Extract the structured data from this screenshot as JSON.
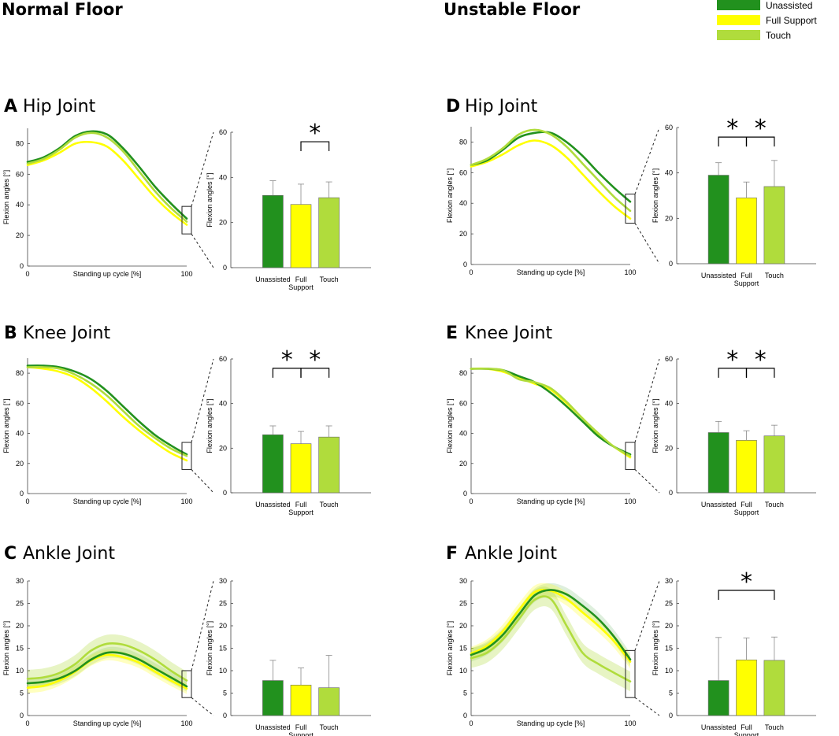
{
  "columns": {
    "left": "Normal Floor",
    "right": "Unstable Floor"
  },
  "legend": [
    {
      "label": "Unassisted",
      "color": "#22911e"
    },
    {
      "label": "Full Support",
      "color": "#ffff00"
    },
    {
      "label": "Touch",
      "color": "#b0dc3c"
    }
  ],
  "common": {
    "xlabel": "Standing up cycle [%]",
    "ylabel": "Flexion angles [°]",
    "bar_ylabel": "Flexion angles [°]",
    "categories": [
      "Unassisted",
      "Full\nSupport",
      "Touch"
    ],
    "x_ticks": [
      "0",
      "100"
    ]
  },
  "chart_data": [
    {
      "letter": "A",
      "title": "Hip Joint",
      "type": "line",
      "line": {
        "ylim": [
          0,
          90
        ],
        "yticks": [
          0,
          20,
          40,
          60,
          80
        ],
        "x_end": 100,
        "series": [
          {
            "name": "Unassisted",
            "x": [
              0,
              10,
              20,
              30,
              40,
              50,
              60,
              70,
              80,
              90,
              100
            ],
            "y": [
              68,
              71,
              77,
              85,
              88,
              86,
              77,
              65,
              52,
              41,
              31
            ]
          },
          {
            "name": "Full Support",
            "x": [
              0,
              10,
              20,
              30,
              40,
              50,
              60,
              70,
              80,
              90,
              100
            ],
            "y": [
              66,
              69,
              74,
              80,
              81,
              78,
              69,
              57,
              45,
              35,
              27
            ]
          },
          {
            "name": "Touch",
            "x": [
              0,
              10,
              20,
              30,
              40,
              50,
              60,
              70,
              80,
              90,
              100
            ],
            "y": [
              67,
              70,
              76,
              84,
              87,
              84,
              75,
              62,
              49,
              38,
              29
            ]
          }
        ],
        "zoom_box": [
          21,
          39
        ]
      },
      "bar": {
        "ylim": [
          0,
          60
        ],
        "yticks": [
          0,
          20,
          40,
          60
        ],
        "values": [
          32,
          28,
          31
        ],
        "errors": [
          6.5,
          9,
          7
        ],
        "sig": [
          {
            "from": 1,
            "to": 2,
            "label": "*"
          }
        ]
      }
    },
    {
      "letter": "B",
      "title": "Knee Joint",
      "type": "line",
      "line": {
        "ylim": [
          0,
          90
        ],
        "yticks": [
          0,
          20,
          40,
          60,
          80
        ],
        "x_end": 100,
        "series": [
          {
            "name": "Unassisted",
            "x": [
              0,
              10,
              20,
              30,
              40,
              50,
              60,
              70,
              80,
              90,
              100
            ],
            "y": [
              85,
              85,
              84,
              81,
              76,
              68,
              58,
              48,
              39,
              32,
              26
            ]
          },
          {
            "name": "Full Support",
            "x": [
              0,
              10,
              20,
              30,
              40,
              50,
              60,
              70,
              80,
              90,
              100
            ],
            "y": [
              84,
              83,
              81,
              77,
              70,
              61,
              51,
              42,
              34,
              27,
              22
            ]
          },
          {
            "name": "Touch",
            "x": [
              0,
              10,
              20,
              30,
              40,
              50,
              60,
              70,
              80,
              90,
              100
            ],
            "y": [
              84,
              84,
              83,
              79,
              73,
              65,
              55,
              45,
              37,
              30,
              25
            ]
          }
        ],
        "zoom_box": [
          16,
          34
        ]
      },
      "bar": {
        "ylim": [
          0,
          60
        ],
        "yticks": [
          0,
          20,
          40,
          60
        ],
        "values": [
          26,
          22,
          25
        ],
        "errors": [
          4,
          5.5,
          5
        ],
        "sig": [
          {
            "from": 0,
            "to": 1,
            "label": "*"
          },
          {
            "from": 1,
            "to": 2,
            "label": "*"
          }
        ]
      }
    },
    {
      "letter": "C",
      "title": "Ankle Joint",
      "type": "line",
      "line": {
        "ylim": [
          0,
          30
        ],
        "yticks": [
          0,
          5,
          10,
          15,
          20,
          25,
          30
        ],
        "x_end": 100,
        "series": [
          {
            "name": "Unassisted",
            "x": [
              0,
              10,
              20,
              30,
              40,
              50,
              60,
              70,
              80,
              90,
              100
            ],
            "y": [
              7.2,
              7.5,
              8.3,
              10,
              12.5,
              14,
              13.8,
              12.5,
              10.5,
              8.5,
              6.5
            ]
          },
          {
            "name": "Full Support",
            "x": [
              0,
              10,
              20,
              30,
              40,
              50,
              60,
              70,
              80,
              90,
              100
            ],
            "y": [
              6.2,
              6.6,
              7.8,
              9.8,
              12.3,
              13.5,
              13,
              11.8,
              9.8,
              7.8,
              6
            ]
          },
          {
            "name": "Touch",
            "x": [
              0,
              10,
              20,
              30,
              40,
              50,
              60,
              70,
              80,
              90,
              100
            ],
            "y": [
              8.2,
              8.5,
              9.5,
              11.5,
              14.5,
              16,
              15.8,
              14.5,
              12.5,
              10,
              7.8
            ]
          }
        ],
        "bands": [
          1.2,
          1.2,
          2.0
        ],
        "zoom_box": [
          4,
          10
        ]
      },
      "bar": {
        "ylim": [
          0,
          30
        ],
        "yticks": [
          0,
          5,
          10,
          15,
          20,
          25,
          30
        ],
        "values": [
          7.8,
          6.8,
          6.2
        ],
        "errors": [
          4.5,
          3.8,
          7.2
        ],
        "sig": []
      }
    },
    {
      "letter": "D",
      "title": "Hip Joint",
      "type": "line",
      "line": {
        "ylim": [
          0,
          90
        ],
        "yticks": [
          0,
          20,
          40,
          60,
          80
        ],
        "x_end": 100,
        "series": [
          {
            "name": "Unassisted",
            "x": [
              0,
              10,
              20,
              30,
              40,
              50,
              60,
              70,
              80,
              90,
              100
            ],
            "y": [
              65,
              68,
              75,
              83,
              86,
              86,
              80,
              71,
              60,
              50,
              41
            ]
          },
          {
            "name": "Full Support",
            "x": [
              0,
              10,
              20,
              30,
              40,
              50,
              60,
              70,
              80,
              90,
              100
            ],
            "y": [
              64,
              67,
              72,
              78,
              81,
              78,
              70,
              59,
              48,
              38,
              30
            ]
          },
          {
            "name": "Touch",
            "x": [
              0,
              10,
              20,
              30,
              40,
              50,
              60,
              70,
              80,
              90,
              100
            ],
            "y": [
              65,
              69,
              76,
              85,
              88,
              85,
              77,
              66,
              55,
              44,
              35
            ]
          }
        ],
        "zoom_box": [
          27,
          46
        ]
      },
      "bar": {
        "ylim": [
          0,
          60
        ],
        "yticks": [
          0,
          20,
          40,
          60
        ],
        "values": [
          39,
          29,
          34
        ],
        "errors": [
          5.5,
          7,
          11.5
        ],
        "sig": [
          {
            "from": 0,
            "to": 1,
            "label": "*"
          },
          {
            "from": 1,
            "to": 2,
            "label": "*"
          }
        ]
      }
    },
    {
      "letter": "E",
      "title": "Knee Joint",
      "type": "line",
      "line": {
        "ylim": [
          0,
          90
        ],
        "yticks": [
          0,
          20,
          40,
          60,
          80
        ],
        "x_end": 100,
        "series": [
          {
            "name": "Unassisted",
            "x": [
              0,
              10,
              20,
              30,
              40,
              50,
              60,
              70,
              80,
              90,
              100
            ],
            "y": [
              83,
              83,
              82,
              78,
              74,
              67,
              58,
              48,
              38,
              31,
              26
            ]
          },
          {
            "name": "Full Support",
            "x": [
              0,
              10,
              20,
              30,
              40,
              50,
              60,
              70,
              80,
              90,
              100
            ],
            "y": [
              83,
              83,
              81,
              77,
              73,
              69,
              60,
              50,
              39,
              31,
              24
            ]
          },
          {
            "name": "Touch",
            "x": [
              0,
              10,
              20,
              30,
              40,
              50,
              60,
              70,
              80,
              90,
              100
            ],
            "y": [
              83,
              83,
              82,
              76,
              74,
              70,
              61,
              50,
              40,
              31,
              25
            ]
          }
        ],
        "zoom_box": [
          16,
          34
        ]
      },
      "bar": {
        "ylim": [
          0,
          60
        ],
        "yticks": [
          0,
          20,
          40,
          60
        ],
        "values": [
          27,
          23.5,
          25.5
        ],
        "errors": [
          5,
          4.3,
          4.8
        ],
        "sig": [
          {
            "from": 0,
            "to": 1,
            "label": "*"
          },
          {
            "from": 1,
            "to": 2,
            "label": "*"
          }
        ]
      }
    },
    {
      "letter": "F",
      "title": "Ankle Joint",
      "type": "line",
      "line": {
        "ylim": [
          0,
          30
        ],
        "yticks": [
          0,
          5,
          10,
          15,
          20,
          25,
          30
        ],
        "x_end": 100,
        "series": [
          {
            "name": "Unassisted",
            "x": [
              0,
              10,
              20,
              30,
              40,
              50,
              60,
              70,
              80,
              90,
              100
            ],
            "y": [
              13.5,
              15,
              18,
              22.5,
              26.8,
              28,
              27,
              24.5,
              21.5,
              17.5,
              12.5
            ]
          },
          {
            "name": "Full Support",
            "x": [
              0,
              10,
              20,
              30,
              40,
              50,
              60,
              70,
              80,
              90,
              100
            ],
            "y": [
              13.8,
              15.5,
              18.8,
              23.5,
              27.5,
              27.8,
              26,
              23,
              20,
              16.5,
              12
            ]
          },
          {
            "name": "Touch",
            "x": [
              0,
              10,
              20,
              30,
              40,
              50,
              60,
              70,
              80,
              90,
              100
            ],
            "y": [
              12.8,
              14,
              17,
              21.5,
              25.8,
              26,
              20,
              14,
              11.5,
              9.5,
              7.6
            ]
          }
        ],
        "bands": [
          1.5,
          1.5,
          2.2
        ],
        "zoom_box": [
          4,
          14.5
        ]
      },
      "bar": {
        "ylim": [
          0,
          30
        ],
        "yticks": [
          0,
          5,
          10,
          15,
          20,
          25,
          30
        ],
        "values": [
          7.8,
          12.4,
          12.3
        ],
        "errors": [
          9.6,
          4.9,
          5.2
        ],
        "sig": [
          {
            "from": 0,
            "to": 2,
            "label": "*"
          }
        ]
      }
    }
  ]
}
